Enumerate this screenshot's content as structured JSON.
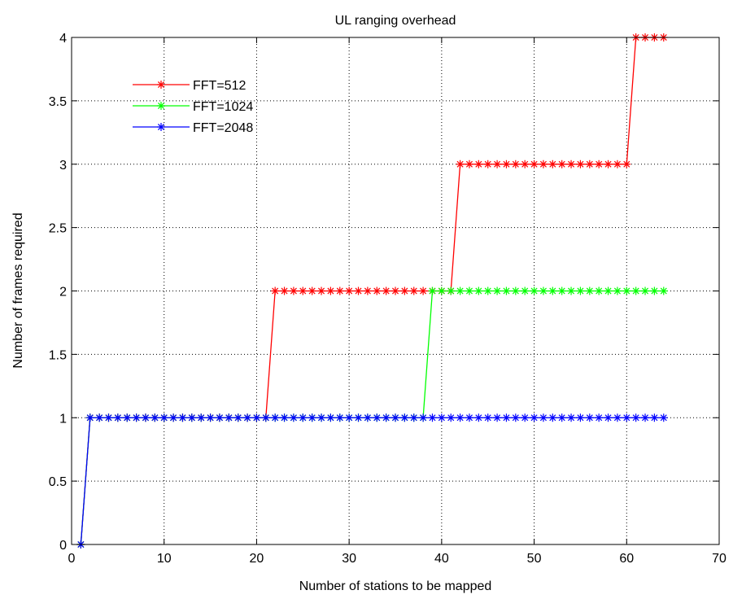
{
  "chart_data": {
    "type": "line",
    "title": "UL ranging overhead",
    "xlabel": "Number of stations to be mapped",
    "ylabel": "Number of frames required",
    "xlim": [
      0,
      70
    ],
    "ylim": [
      0,
      4
    ],
    "xticks": [
      0,
      10,
      20,
      30,
      40,
      50,
      60,
      70
    ],
    "xtick_labels": [
      "0",
      "10",
      "20",
      "30",
      "40",
      "50",
      "60",
      "70"
    ],
    "yticks": [
      0,
      0.5,
      1,
      1.5,
      2,
      2.5,
      3,
      3.5,
      4
    ],
    "ytick_labels": [
      "0",
      "0.5",
      "1",
      "1.5",
      "2",
      "2.5",
      "3",
      "3.5",
      "4"
    ],
    "grid": true,
    "legend_position": "top-left",
    "marker": "asterisk",
    "series": [
      {
        "name": "FFT=512",
        "color": "#ff0000",
        "step_rule": "y = 0 for x = 1; 1 for 2-21; 2 for 22-41; 3 for 42-60; 4 for 61-64",
        "values": [
          [
            1,
            0
          ],
          [
            2,
            1
          ],
          [
            3,
            1
          ],
          [
            4,
            1
          ],
          [
            5,
            1
          ],
          [
            6,
            1
          ],
          [
            7,
            1
          ],
          [
            8,
            1
          ],
          [
            9,
            1
          ],
          [
            10,
            1
          ],
          [
            11,
            1
          ],
          [
            12,
            1
          ],
          [
            13,
            1
          ],
          [
            14,
            1
          ],
          [
            15,
            1
          ],
          [
            16,
            1
          ],
          [
            17,
            1
          ],
          [
            18,
            1
          ],
          [
            19,
            1
          ],
          [
            20,
            1
          ],
          [
            21,
            1
          ],
          [
            22,
            2
          ],
          [
            23,
            2
          ],
          [
            24,
            2
          ],
          [
            25,
            2
          ],
          [
            26,
            2
          ],
          [
            27,
            2
          ],
          [
            28,
            2
          ],
          [
            29,
            2
          ],
          [
            30,
            2
          ],
          [
            31,
            2
          ],
          [
            32,
            2
          ],
          [
            33,
            2
          ],
          [
            34,
            2
          ],
          [
            35,
            2
          ],
          [
            36,
            2
          ],
          [
            37,
            2
          ],
          [
            38,
            2
          ],
          [
            39,
            2
          ],
          [
            40,
            2
          ],
          [
            41,
            2
          ],
          [
            42,
            3
          ],
          [
            43,
            3
          ],
          [
            44,
            3
          ],
          [
            45,
            3
          ],
          [
            46,
            3
          ],
          [
            47,
            3
          ],
          [
            48,
            3
          ],
          [
            49,
            3
          ],
          [
            50,
            3
          ],
          [
            51,
            3
          ],
          [
            52,
            3
          ],
          [
            53,
            3
          ],
          [
            54,
            3
          ],
          [
            55,
            3
          ],
          [
            56,
            3
          ],
          [
            57,
            3
          ],
          [
            58,
            3
          ],
          [
            59,
            3
          ],
          [
            60,
            3
          ],
          [
            61,
            4
          ],
          [
            62,
            4
          ],
          [
            63,
            4
          ],
          [
            64,
            4
          ]
        ]
      },
      {
        "name": "FFT=1024",
        "color": "#00ff00",
        "step_rule": "y = 0 for x = 1; 1 for 2-38; 2 for 39-64",
        "values": [
          [
            1,
            0
          ],
          [
            2,
            1
          ],
          [
            3,
            1
          ],
          [
            4,
            1
          ],
          [
            5,
            1
          ],
          [
            6,
            1
          ],
          [
            7,
            1
          ],
          [
            8,
            1
          ],
          [
            9,
            1
          ],
          [
            10,
            1
          ],
          [
            11,
            1
          ],
          [
            12,
            1
          ],
          [
            13,
            1
          ],
          [
            14,
            1
          ],
          [
            15,
            1
          ],
          [
            16,
            1
          ],
          [
            17,
            1
          ],
          [
            18,
            1
          ],
          [
            19,
            1
          ],
          [
            20,
            1
          ],
          [
            21,
            1
          ],
          [
            22,
            1
          ],
          [
            23,
            1
          ],
          [
            24,
            1
          ],
          [
            25,
            1
          ],
          [
            26,
            1
          ],
          [
            27,
            1
          ],
          [
            28,
            1
          ],
          [
            29,
            1
          ],
          [
            30,
            1
          ],
          [
            31,
            1
          ],
          [
            32,
            1
          ],
          [
            33,
            1
          ],
          [
            34,
            1
          ],
          [
            35,
            1
          ],
          [
            36,
            1
          ],
          [
            37,
            1
          ],
          [
            38,
            1
          ],
          [
            39,
            2
          ],
          [
            40,
            2
          ],
          [
            41,
            2
          ],
          [
            42,
            2
          ],
          [
            43,
            2
          ],
          [
            44,
            2
          ],
          [
            45,
            2
          ],
          [
            46,
            2
          ],
          [
            47,
            2
          ],
          [
            48,
            2
          ],
          [
            49,
            2
          ],
          [
            50,
            2
          ],
          [
            51,
            2
          ],
          [
            52,
            2
          ],
          [
            53,
            2
          ],
          [
            54,
            2
          ],
          [
            55,
            2
          ],
          [
            56,
            2
          ],
          [
            57,
            2
          ],
          [
            58,
            2
          ],
          [
            59,
            2
          ],
          [
            60,
            2
          ],
          [
            61,
            2
          ],
          [
            62,
            2
          ],
          [
            63,
            2
          ],
          [
            64,
            2
          ]
        ]
      },
      {
        "name": "FFT=2048",
        "color": "#0000ff",
        "step_rule": "y = 0 for x = 1; 1 for 2-64",
        "values": [
          [
            1,
            0
          ],
          [
            2,
            1
          ],
          [
            3,
            1
          ],
          [
            4,
            1
          ],
          [
            5,
            1
          ],
          [
            6,
            1
          ],
          [
            7,
            1
          ],
          [
            8,
            1
          ],
          [
            9,
            1
          ],
          [
            10,
            1
          ],
          [
            11,
            1
          ],
          [
            12,
            1
          ],
          [
            13,
            1
          ],
          [
            14,
            1
          ],
          [
            15,
            1
          ],
          [
            16,
            1
          ],
          [
            17,
            1
          ],
          [
            18,
            1
          ],
          [
            19,
            1
          ],
          [
            20,
            1
          ],
          [
            21,
            1
          ],
          [
            22,
            1
          ],
          [
            23,
            1
          ],
          [
            24,
            1
          ],
          [
            25,
            1
          ],
          [
            26,
            1
          ],
          [
            27,
            1
          ],
          [
            28,
            1
          ],
          [
            29,
            1
          ],
          [
            30,
            1
          ],
          [
            31,
            1
          ],
          [
            32,
            1
          ],
          [
            33,
            1
          ],
          [
            34,
            1
          ],
          [
            35,
            1
          ],
          [
            36,
            1
          ],
          [
            37,
            1
          ],
          [
            38,
            1
          ],
          [
            39,
            1
          ],
          [
            40,
            1
          ],
          [
            41,
            1
          ],
          [
            42,
            1
          ],
          [
            43,
            1
          ],
          [
            44,
            1
          ],
          [
            45,
            1
          ],
          [
            46,
            1
          ],
          [
            47,
            1
          ],
          [
            48,
            1
          ],
          [
            49,
            1
          ],
          [
            50,
            1
          ],
          [
            51,
            1
          ],
          [
            52,
            1
          ],
          [
            53,
            1
          ],
          [
            54,
            1
          ],
          [
            55,
            1
          ],
          [
            56,
            1
          ],
          [
            57,
            1
          ],
          [
            58,
            1
          ],
          [
            59,
            1
          ],
          [
            60,
            1
          ],
          [
            61,
            1
          ],
          [
            62,
            1
          ],
          [
            63,
            1
          ],
          [
            64,
            1
          ]
        ]
      }
    ]
  }
}
